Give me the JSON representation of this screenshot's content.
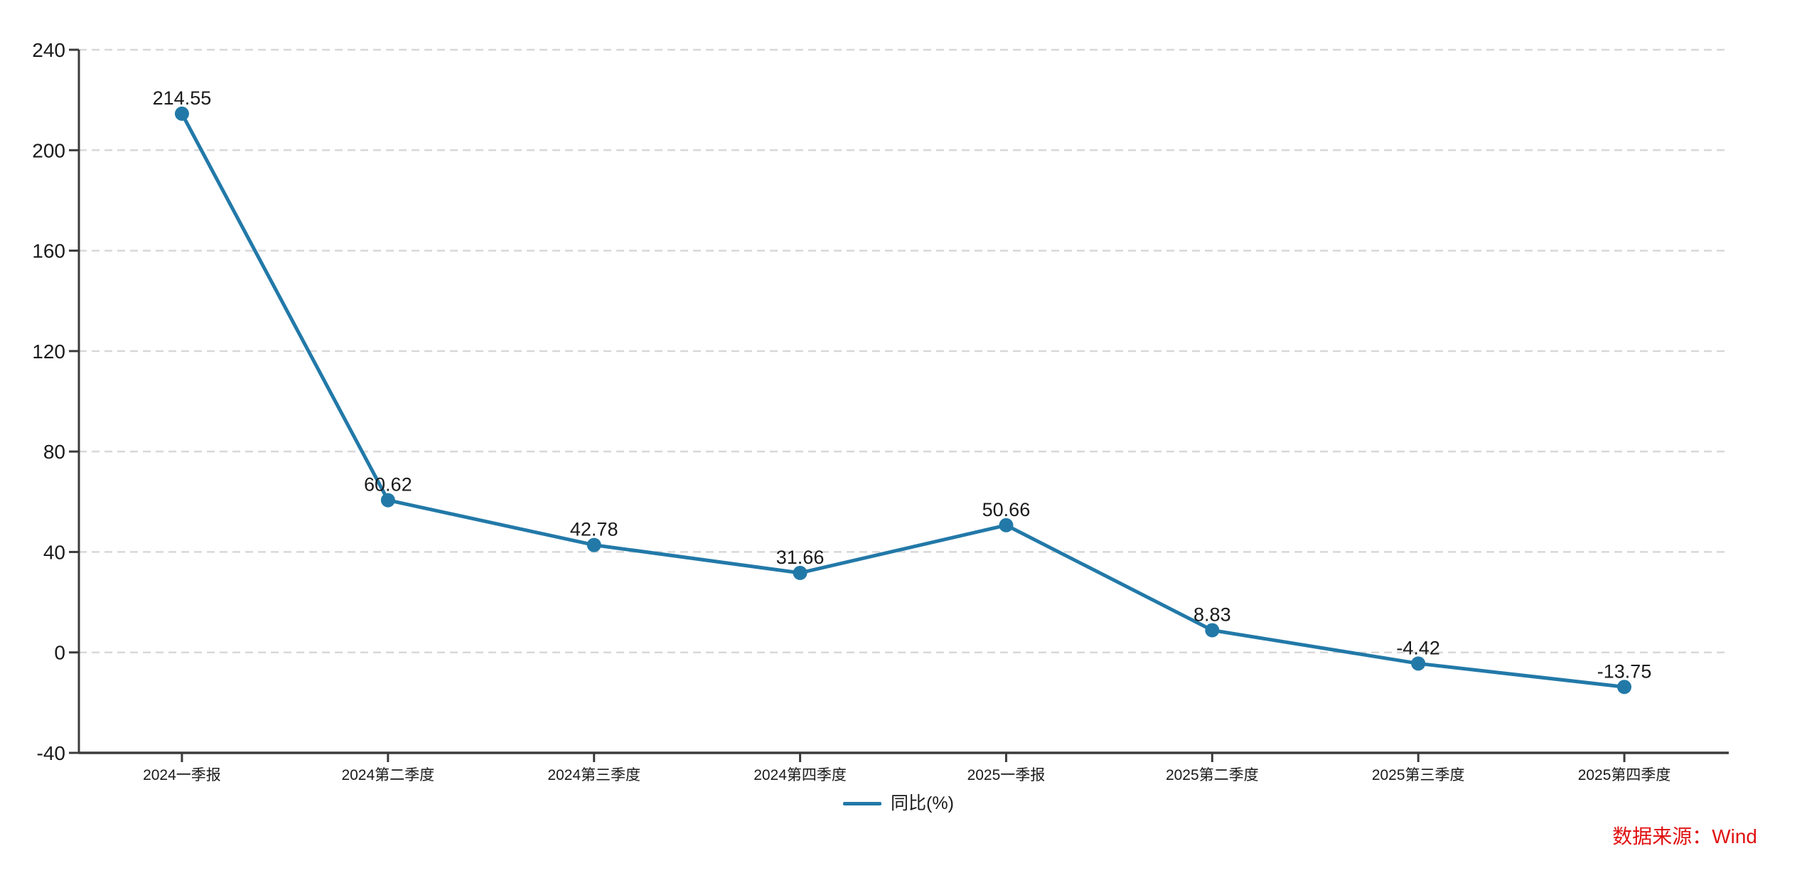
{
  "chart_data": {
    "type": "line",
    "title": "",
    "categories": [
      "2024一季报",
      "2024第二季度",
      "2024第三季度",
      "2024第四季度",
      "2025一季报",
      "2025第二季度",
      "2025第三季度",
      "2025第四季度"
    ],
    "series": [
      {
        "name": "同比(%)",
        "values": [
          214.55,
          60.62,
          42.78,
          31.66,
          50.66,
          8.83,
          -4.42,
          -13.75
        ]
      }
    ],
    "point_labels": [
      "214.55",
      "60.62",
      "42.78",
      "31.66",
      "50.66",
      "8.83",
      "-4.42",
      "-13.75"
    ],
    "ylim": [
      -40,
      240
    ],
    "yticks": [
      240,
      200,
      160,
      120,
      80,
      40,
      0,
      -40
    ],
    "grid": "horizontal-dashed",
    "legend_position": "bottom-center"
  },
  "legend": {
    "label": "同比(%)"
  },
  "source": {
    "text": "数据来源：Wind"
  },
  "colors": {
    "line": "#2279a8",
    "point": "#2279a8",
    "axis": "#3b3b3b",
    "grid": "#d8d8d8",
    "text": "#1a1a1a",
    "source_text": "#e01111",
    "background": "#ffffff"
  }
}
